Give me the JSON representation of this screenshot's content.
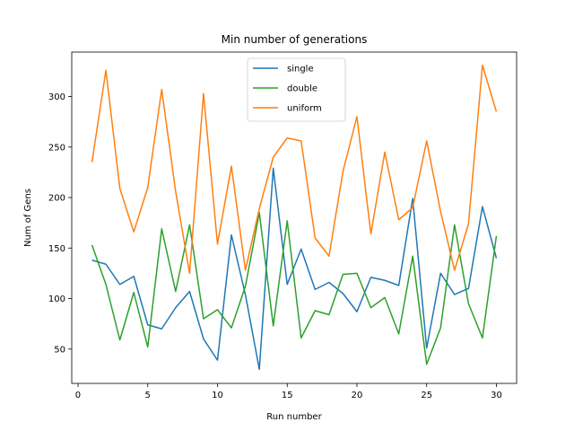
{
  "chart_data": {
    "type": "line",
    "title": "Min number of generations",
    "xlabel": "Run number",
    "ylabel": "Num of Gens",
    "xlim": [
      -0.45,
      31.45
    ],
    "ylim": [
      16,
      344
    ],
    "xticks": [
      0,
      5,
      10,
      15,
      20,
      25,
      30
    ],
    "yticks": [
      50,
      100,
      150,
      200,
      250,
      300
    ],
    "grid": false,
    "legend_position": "top-center",
    "x": [
      1,
      2,
      3,
      4,
      5,
      6,
      7,
      8,
      9,
      10,
      11,
      12,
      13,
      14,
      15,
      16,
      17,
      18,
      19,
      20,
      21,
      22,
      23,
      24,
      25,
      26,
      27,
      28,
      29,
      30
    ],
    "series": [
      {
        "name": "single",
        "color": "#1f77b4",
        "values": [
          138,
          134,
          114,
          122,
          74,
          70,
          91,
          107,
          60,
          39,
          163,
          104,
          30,
          229,
          114,
          149,
          109,
          116,
          105,
          87,
          121,
          118,
          113,
          199,
          51,
          125,
          104,
          110,
          191,
          140
        ]
      },
      {
        "name": "double",
        "color": "#2ca02c",
        "values": [
          153,
          114,
          59,
          106,
          52,
          169,
          107,
          173,
          80,
          89,
          71,
          112,
          185,
          73,
          177,
          61,
          88,
          84,
          124,
          125,
          91,
          101,
          65,
          142,
          35,
          71,
          173,
          95,
          61,
          162
        ]
      },
      {
        "name": "uniform",
        "color": "#ff7f0e",
        "values": [
          235,
          326,
          209,
          166,
          210,
          307,
          206,
          125,
          303,
          154,
          231,
          128,
          189,
          240,
          259,
          256,
          160,
          142,
          226,
          280,
          164,
          245,
          178,
          190,
          256,
          186,
          128,
          174,
          331,
          285
        ]
      }
    ]
  }
}
